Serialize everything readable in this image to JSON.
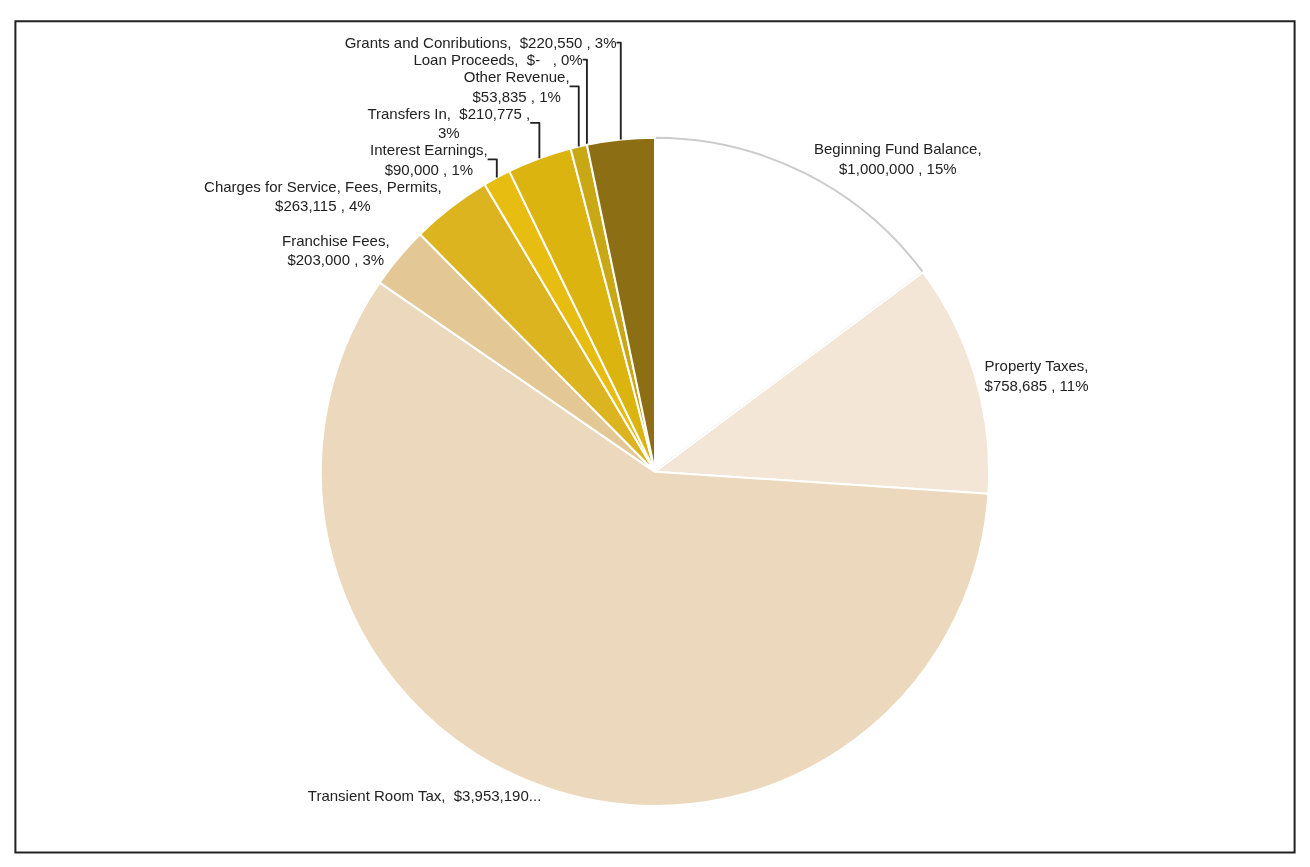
{
  "chart_data": {
    "type": "pie",
    "categories": [
      "Beginning Fund Balance",
      "Property Taxes",
      "Transient Room Tax",
      "Franchise Fees",
      "Charges for Service, Fees, Permits",
      "Interest Earnings",
      "Transfers In",
      "Other Revenue",
      "Loan Proceeds",
      "Grants and Conributions"
    ],
    "values": [
      1000000,
      758685,
      3953190,
      203000,
      263115,
      90000,
      210775,
      53835,
      0,
      220550
    ],
    "colors": [
      "#ffffff",
      "#f3e6d6",
      "#ecd9bd",
      "#e3c895",
      "#dcb420",
      "#e6bd10",
      "#dcb410",
      "#c8a814",
      "#b09010",
      "#8c6e14"
    ],
    "value_labels": [
      ",\n$1,000,000 , 15%",
      ",\n$758,685 , 11%",
      ",  $3,953,190...",
      ",\n$203,000 , 3%",
      ",\n$263,115 , 4%",
      ",\n$90,000 , 1%",
      ",  $210,775 ,\n3%",
      ",\n$53,835 , 1%",
      ",  $-   , 0%",
      ",  $220,550 , 3%"
    ],
    "legend": false
  }
}
